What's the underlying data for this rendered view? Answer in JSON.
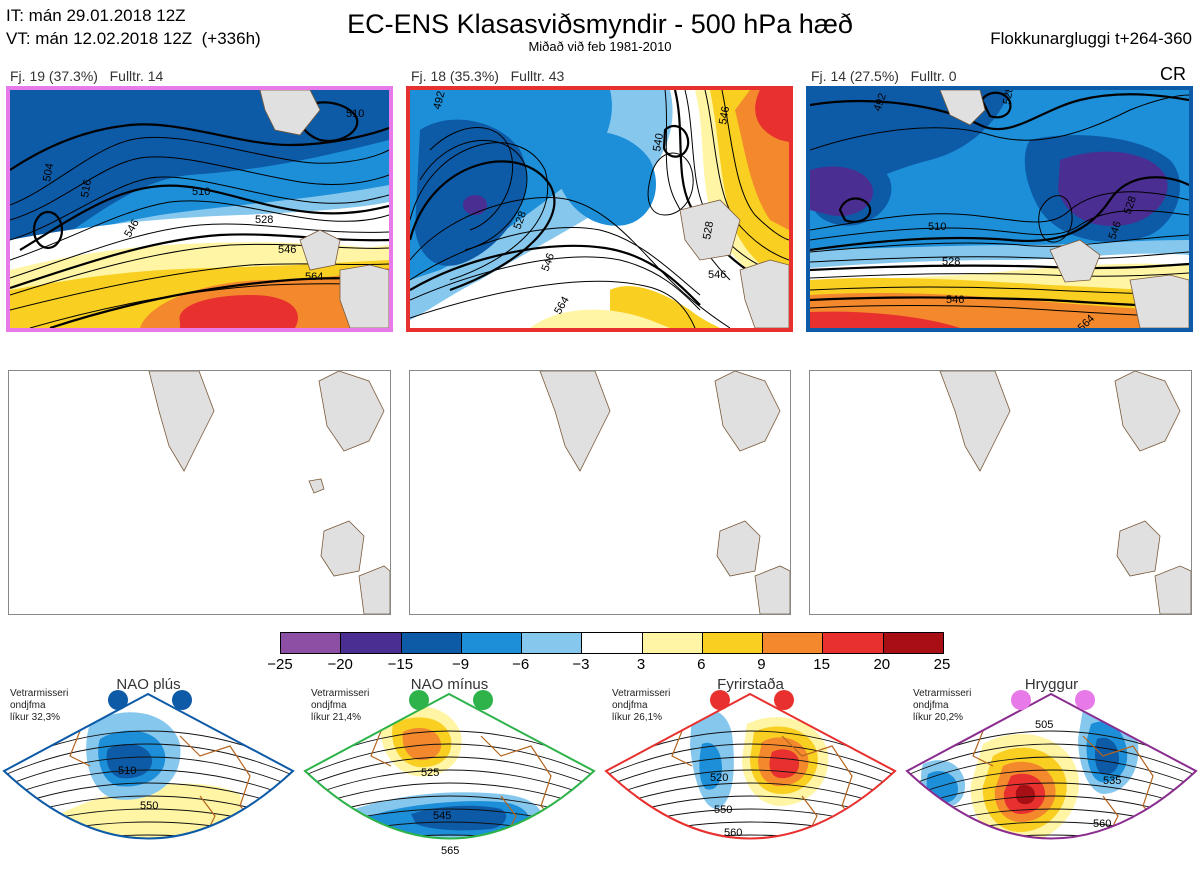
{
  "header": {
    "it_line": "IT: mán 29.01.2018 12Z",
    "vt_line": "VT: mán 12.02.2018 12Z  (+336h)",
    "title": "EC-ENS Klasasviðsmyndir - 500 hPa hæð",
    "subtitle": "Miðað við feb 1981-2010",
    "window": "Flokkunargluggi t+264-360",
    "cr": "CR"
  },
  "clusters": [
    {
      "label": "Fj. 19 (37.3%)",
      "fulltr": "Fulltr. 14",
      "border_color": "#e879e8",
      "contour_labels": [
        "510",
        "510",
        "504",
        "516",
        "528",
        "546",
        "546",
        "564"
      ]
    },
    {
      "label": "Fj. 18 (35.3%)",
      "fulltr": "Fulltr. 43",
      "border_color": "#e8302e",
      "contour_labels": [
        "492",
        "540",
        "546",
        "528",
        "528",
        "546",
        "564",
        "546"
      ]
    },
    {
      "label": "Fj. 14 (27.5%)",
      "fulltr": "Fulltr. 0",
      "border_color": "#0d5aa7",
      "contour_labels": [
        "492",
        "528",
        "510",
        "528",
        "546",
        "528",
        "546",
        "564"
      ]
    }
  ],
  "colorbar": {
    "ticks": [
      "−25",
      "−20",
      "−15",
      "−9",
      "−6",
      "−3",
      "3",
      "6",
      "9",
      "15",
      "20",
      "25"
    ],
    "colors": [
      "#8c4fa3",
      "#4a2e91",
      "#0d5aa7",
      "#1c8fd8",
      "#86c7ee",
      "#ffffff",
      "#fff5a5",
      "#f9cf22",
      "#f3882d",
      "#e8302e",
      "#a80f15"
    ]
  },
  "regimes": [
    {
      "name": "NAO plús",
      "stat_lines": [
        "Vetrarmisseri",
        "ondjfma",
        "líkur 32,3%"
      ],
      "dot_color": "#0d5aa7",
      "border_color": "#0d5aa7",
      "contour_labels": [
        "510",
        "550"
      ]
    },
    {
      "name": "NAO mínus",
      "stat_lines": [
        "Vetrarmisseri",
        "ondjfma",
        "líkur 21,4%"
      ],
      "dot_color": "#2db34a",
      "border_color": "#2db34a",
      "contour_labels": [
        "525",
        "545",
        "565"
      ]
    },
    {
      "name": "Fyrirstaða",
      "stat_lines": [
        "Vetrarmisseri",
        "ondjfma",
        "líkur 26,1%"
      ],
      "dot_color": "#e8302e",
      "border_color": "#e8302e",
      "contour_labels": [
        "520",
        "550",
        "560"
      ]
    },
    {
      "name": "Hryggur",
      "stat_lines": [
        "Vetrarmisseri",
        "ondjfma",
        "líkur 20,2%"
      ],
      "dot_color": "#e879e8",
      "border_color": "#8a2d8f",
      "contour_labels": [
        "505",
        "535",
        "560"
      ]
    }
  ]
}
